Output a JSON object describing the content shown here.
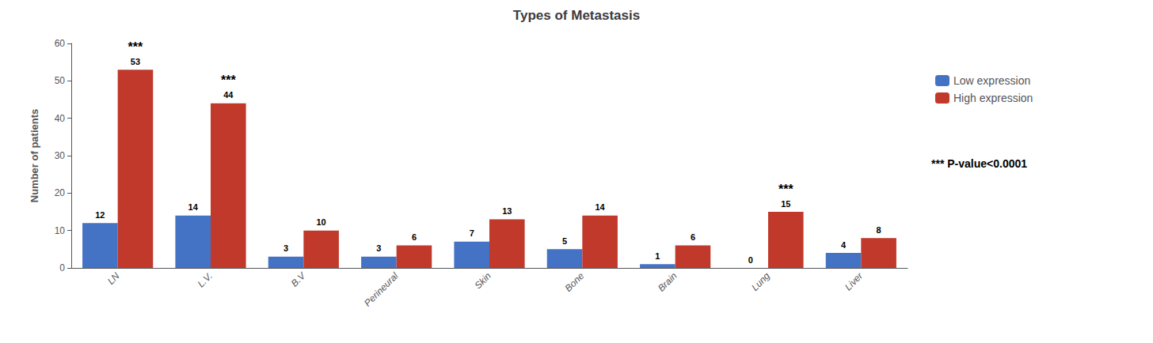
{
  "chart_data": {
    "type": "bar",
    "title": "Types of Metastasis",
    "ylabel": "Number of patients",
    "categories": [
      "LN",
      "L.V.",
      "B.V",
      "Perineural",
      "Skin",
      "Bone",
      "Brain",
      "Lung",
      "Liver"
    ],
    "series": [
      {
        "name": "Low expression",
        "color": "#4472C4",
        "values": [
          12,
          14,
          3,
          3,
          7,
          5,
          1,
          0,
          4
        ]
      },
      {
        "name": "High expression",
        "color": "#C0392B",
        "values": [
          53,
          44,
          10,
          6,
          13,
          14,
          6,
          15,
          8
        ]
      }
    ],
    "ylim": [
      0,
      60
    ],
    "yticks": [
      0,
      10,
      20,
      30,
      40,
      50,
      60
    ],
    "data_labels": true,
    "grid": false,
    "legend": "right",
    "annotations": [
      {
        "text": "***",
        "category": "LN"
      },
      {
        "text": "***",
        "category": "L.V."
      },
      {
        "text": "***",
        "category": "Lung"
      },
      {
        "text": "*** P-value<0.0001"
      }
    ]
  }
}
